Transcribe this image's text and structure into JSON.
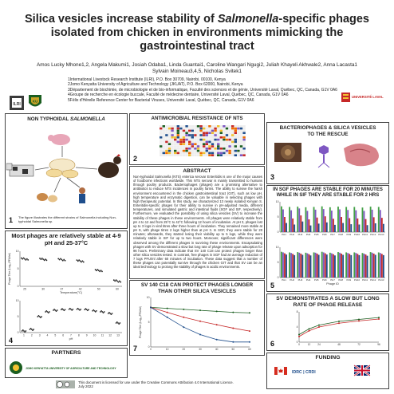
{
  "poster": {
    "title_part1": "Silica vesicles increase stability of ",
    "title_italic": "Salmonella",
    "title_part2": "-specific phages isolated from chicken in environments mimicking the gastrointestinal tract",
    "authors_line1": "Amos Lucky Mhone1,2, Angela Makumi1, Josiah Odaba1, Linda Guantai1, Caroline Wangari Ngugi2, Juliah Khayeli Akhwale2, Anna Lacasta1",
    "authors_line2": "Sylvain Moineau3,4,5, Nicholas Svitek1",
    "affiliations": [
      "1International Livestock Research Institute (ILRI), P.O. Box 30709, Nairobi, 00100, Kenya",
      "2Jomo Kenyatta University of Agriculture and Technology (JKUAT), P.O. Box 62000, Nairobi, Kenya",
      "3Département de biochimie, de microbiologie et de bio-informatique, Faculté des sciences et de génie, Université Laval, Québec, QC, Canada, G1V 0A6",
      "4Groupe de recherche en écologie buccale, Faculté de médecine dentaire, Université Laval, Québec, QC, Canada, G1V 0A6",
      "5Félix d'Hérelle Reference Center for Bacterial Viruses, Université Laval, Québec, QC, Canada, G1V 0A6"
    ],
    "logo_ilri": "ILRI",
    "logo_ku": "KU",
    "logo_laval": "UNIVERSITÉ LAVAL"
  },
  "panels": {
    "p1": {
      "title_part1": "NON TYPHOIDAL ",
      "title_italic": "SALMONELLA",
      "num": "1",
      "caption": "The figure illustrates the different strains of Salmonella including Non-typhoidal Salmonella sp."
    },
    "p2": {
      "title": "ANTIMICROBIAL RESISTANCE OF NTS",
      "num": "2"
    },
    "p3": {
      "title": "BACTERIOPHAGES & SILICA VESICLES TO THE RESCUE",
      "num": "3"
    },
    "abstract": {
      "title": "ABSTRACT",
      "text": "Non-typhoidal Salmonella (NTS) enterica serovar Enteritidis is one of the major causes of foodborne infections worldwide. This NTS serovar is mainly transmitted to humans through poultry products. Bacteriophages (phages) are a promising alternative to antibiotics to reduce NTS incidences in poultry farms. The ability to survive the harsh environment encountered in the chicken gastrointestinal tract (GIT), such as low pH, high temperature and enzymatic digestion, can be valuable in selecting phages with high therapeutic potential. In this study, we characterized 13 newly isolated Kenyan S. Enteritidis-specific phages for their ability to survive in pH-adjusted media, different temperatures, and simulated gastric and intestinal fluids (SGF and SIF, respectively). Furthermore, we evaluated the possibility of using silica vesicles (SV) to increase the stability of these phages in these environments. All phages were relatively stable from pH 4 to 12 and from 25°C to 42°C following 12 hours of incubation. At pH 3, phages lost up to 3 logs in viral titres after three hours of incubation. They remained more stable at pH 9, with phage titres 2 logs higher than at pH 3. In SGF, they were stable for 20 minutes; afterwards, they started losing their viability up to 5 logs, while they were relatively stable in SIF for up to two hours. Moreover, significant differences were observed among the different phages in surviving these environments. Encapsulating phages with SV demonstrated a slow but long rate of phage release upon adsorption for 96 hours. Preliminary data indicate that SV 140 C18 can protect phages longer than other silica vesicles tested. In contrast, free phages in SGF had an average reduction of 7 logs PFU/ml after 60 minutes of incubation. These data suggest that a number of these phages can potentially survive through the chicken GIT and that SV can be an ideal technology to prolong the stability of phages in acidic environments."
    },
    "p4": {
      "title": "Most phages are relatively stable at 4-9 pH and 25-37°C",
      "num": "4",
      "ylabel": "Phage Titre (Log₁₀PFU/ml)",
      "xlabel_temp": "Temperature(°C)",
      "xlabel_ph": "pH"
    },
    "p5": {
      "title": "IN SGF PHAGES ARE STABLE FOR 20 MINUTES WHILE IN SIF THEY ARE STABLE FOR 2 HRS",
      "num": "5",
      "xlabel": "Phage ID"
    },
    "p6": {
      "title": "SV DEMONSTRATES A SLOW BUT LONG RATE OF PHAGE RELEASE",
      "num": "6"
    },
    "p7": {
      "title": "SV 140 C18 CAN PROTECT PHAGES LONGER THAN OTHER SILICA VESICLES",
      "num": "7",
      "ylabel": "Phage Titre (Log₁₀PFU/ml)"
    },
    "partners": {
      "title": "PARTNERS",
      "jkuat": "JOMO KENYATTA UNIVERSITY OF AGRICULTURE AND TECHNOLOGY"
    },
    "funding": {
      "title": "FUNDING",
      "idrc": "IDRC | CRDI"
    }
  },
  "footer": {
    "license": "This document is licensed for use under the Creative Commons Attribution 4.0 International Licence.",
    "date": "July 2022"
  },
  "colors": {
    "panel_border": "#444444",
    "accent_green": "#2e7d32",
    "accent_red": "#c62828"
  },
  "chart_data": [
    {
      "type": "scatter",
      "name": "temperature stability",
      "x": [
        25,
        30,
        37,
        42,
        50,
        60
      ],
      "y": [
        7.8,
        7.7,
        7.6,
        7.2,
        4.5,
        1.5
      ],
      "xlabel": "Temperature(°C)",
      "ylabel": "Phage Titre (Log₁₀PFU/ml)",
      "ylim": [
        0,
        10
      ]
    },
    {
      "type": "scatter",
      "name": "pH stability",
      "x": [
        1,
        2,
        3,
        4,
        5,
        6,
        7,
        8,
        9,
        10,
        11,
        12,
        13
      ],
      "y": [
        0.5,
        1.0,
        5.0,
        6.5,
        7.0,
        7.2,
        7.3,
        7.3,
        7.2,
        6.8,
        6.5,
        6.0,
        3.0
      ],
      "xlabel": "pH",
      "ylim": [
        0,
        10
      ]
    },
    {
      "type": "bar",
      "name": "SGF stability",
      "categories": [
        "PH1",
        "PH2",
        "PH3",
        "PH4",
        "PH5",
        "PH6",
        "PH7",
        "PH8",
        "PH9",
        "PH10",
        "PH11",
        "PH12",
        "PH13"
      ],
      "series": [
        {
          "values": [
            8.5,
            8.3,
            8.4,
            8.2,
            8.3,
            8.5,
            8.2,
            8.4,
            8.3,
            8.3,
            8.1,
            8.4,
            8.3
          ]
        },
        {
          "values": [
            7.5,
            7.2,
            7.8,
            7.0,
            7.4,
            7.6,
            7.1,
            7.5,
            7.3,
            7.2,
            7.0,
            7.4,
            7.3
          ]
        },
        {
          "values": [
            5.0,
            4.5,
            5.5,
            4.2,
            4.8,
            5.2,
            4.4,
            5.0,
            4.6,
            4.5,
            4.3,
            4.9,
            4.7
          ]
        },
        {
          "values": [
            3.0,
            2.5,
            3.5,
            2.2,
            2.8,
            3.2,
            2.4,
            3.0,
            2.6,
            2.5,
            2.3,
            2.9,
            2.7
          ]
        }
      ],
      "xlabel": "Phage ID",
      "ylim": [
        0,
        10
      ]
    },
    {
      "type": "bar",
      "name": "SIF stability",
      "categories": [
        "PH1",
        "PH2",
        "PH3",
        "PH4",
        "PH5",
        "PH6",
        "PH7",
        "PH8",
        "PH9",
        "PH10",
        "PH11",
        "PH12",
        "PH13"
      ],
      "series": [
        {
          "values": [
            8.5,
            8.3,
            8.4,
            8.2,
            8.3,
            8.5,
            8.2,
            8.4,
            8.3,
            8.3,
            8.1,
            8.4,
            8.3
          ]
        },
        {
          "values": [
            8.3,
            8.1,
            8.2,
            8.0,
            8.2,
            8.3,
            8.0,
            8.2,
            8.1,
            8.1,
            7.9,
            8.2,
            8.1
          ]
        },
        {
          "values": [
            8.0,
            7.8,
            7.9,
            7.7,
            7.9,
            8.0,
            7.7,
            7.9,
            7.8,
            7.8,
            7.6,
            7.9,
            7.8
          ]
        },
        {
          "values": [
            7.6,
            7.4,
            7.5,
            7.3,
            7.5,
            7.6,
            7.3,
            7.5,
            7.4,
            7.4,
            7.2,
            7.5,
            7.4
          ]
        }
      ],
      "xlabel": "Phage ID",
      "ylim": [
        0,
        10
      ]
    },
    {
      "type": "line",
      "name": "SV phage release",
      "x": [
        0,
        12,
        24,
        48,
        72,
        96
      ],
      "series": [
        {
          "values": [
            2.0,
            3.5,
            4.5,
            5.5,
            6.0,
            6.5
          ]
        },
        {
          "values": [
            1.5,
            3.0,
            4.0,
            5.0,
            5.6,
            6.1
          ]
        }
      ],
      "ylim": [
        0,
        8
      ]
    },
    {
      "type": "line",
      "name": "SV 140 C18 protection",
      "x": [
        0,
        10,
        20,
        30,
        40,
        50,
        60
      ],
      "series": [
        {
          "values": [
            8.0,
            7.8,
            7.6,
            7.4,
            7.2,
            7.0,
            6.9
          ]
        },
        {
          "values": [
            8.0,
            7.0,
            6.0,
            5.2,
            4.5,
            3.8,
            3.2
          ]
        },
        {
          "values": [
            8.0,
            6.0,
            4.0,
            2.5,
            1.5,
            1.0,
            1.0
          ]
        }
      ],
      "ylabel": "Phage Titre (Log₁₀PFU/ml)",
      "ylim": [
        0,
        10
      ]
    }
  ]
}
